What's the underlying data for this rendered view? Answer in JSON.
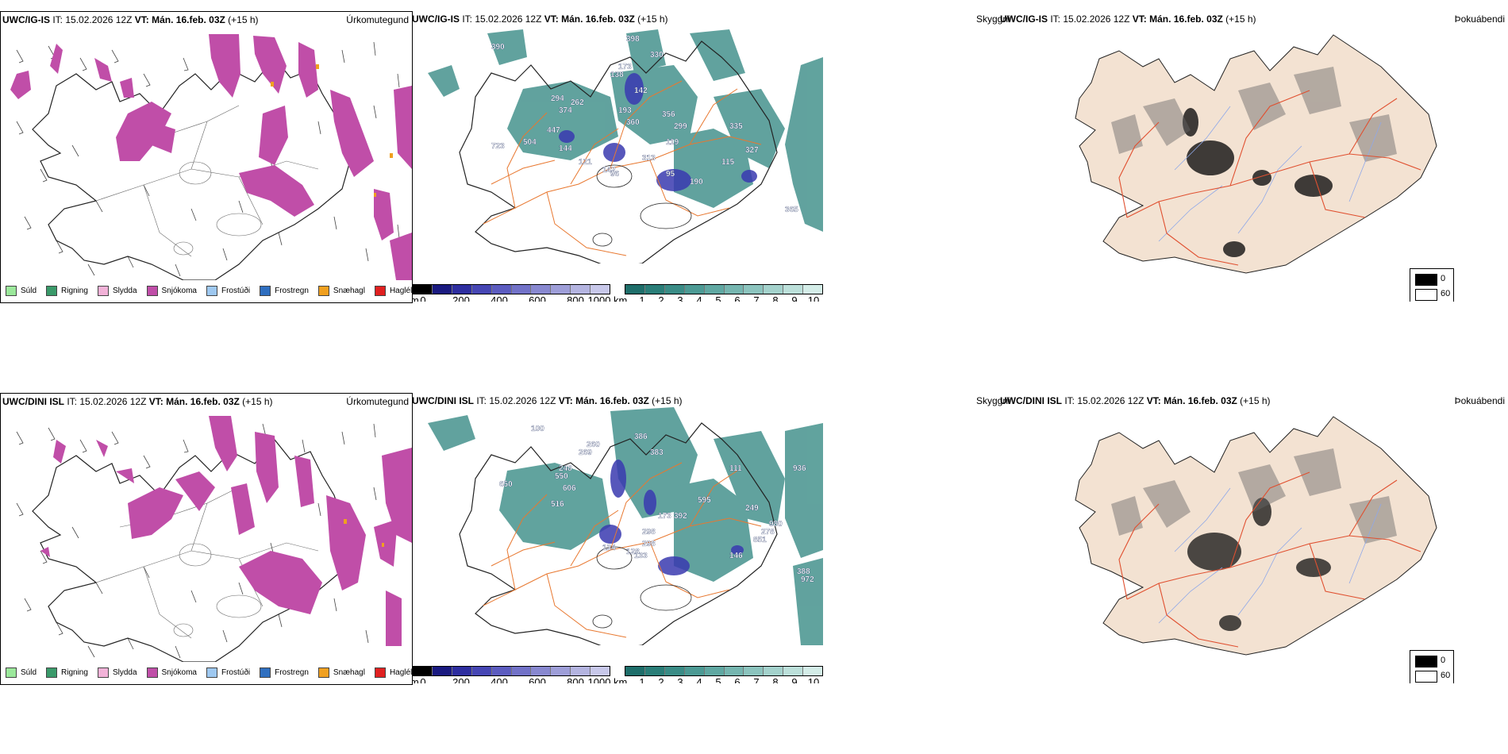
{
  "rows": [
    {
      "model": "UWC/IG-IS",
      "it_label": "IT:",
      "it_value": "15.02.2026 12Z",
      "vt_label": "VT:",
      "vt_value": "Mán. 16.feb. 03Z",
      "lead": "(+15 h)"
    },
    {
      "model": "UWC/DINI ISL",
      "it_label": "IT:",
      "it_value": "15.02.2026 12Z",
      "vt_label": "VT:",
      "vt_value": "Mán. 16.feb. 03Z",
      "lead": "(+15 h)"
    }
  ],
  "panel_names": {
    "precip_type": "Úrkomutegund",
    "cloud_base": "Skyggni",
    "fog": "Þokuábendi"
  },
  "precip_legend": [
    {
      "label": "Súld",
      "color": "#9be89b"
    },
    {
      "label": "Rigning",
      "color": "#3a9a6a"
    },
    {
      "label": "Slydda",
      "color": "#f2b2d8"
    },
    {
      "label": "Snjókoma",
      "color": "#c04ea8"
    },
    {
      "label": "Frostúði",
      "color": "#9ec8f0"
    },
    {
      "label": "Frostregn",
      "color": "#2f6fc0"
    },
    {
      "label": "Snæhagl",
      "color": "#f0a020"
    },
    {
      "label": "Haglél",
      "color": "#e02020"
    }
  ],
  "height_colorbar": {
    "unit": "m",
    "ticks": [
      "0",
      "200",
      "400",
      "600",
      "800",
      "1000"
    ],
    "colors": [
      "#000000",
      "#1a1a80",
      "#2e2ea0",
      "#4646b4",
      "#5c5cc0",
      "#7272c8",
      "#8888d0",
      "#9e9ed8",
      "#b4b4e0",
      "#c8c8ea"
    ]
  },
  "visibility_colorbar": {
    "unit": "km",
    "ticks": [
      "1",
      "2",
      "3",
      "4",
      "5",
      "6",
      "7",
      "8",
      "9",
      "10"
    ],
    "colors": [
      "#1e6e6a",
      "#2a7e78",
      "#3a8c86",
      "#4c9a94",
      "#60a8a2",
      "#76b6b0",
      "#8cc4be",
      "#a4d2cc",
      "#bce0da",
      "#d4ede8"
    ]
  },
  "fog_legend": {
    "high": "0",
    "low": "60"
  },
  "cloud_labels_top": [
    "390",
    "398",
    "330",
    "173",
    "138",
    "142",
    "294",
    "262",
    "374",
    "193",
    "360",
    "356",
    "299",
    "723",
    "504",
    "447",
    "144",
    "121",
    "96",
    "95",
    "119",
    "313",
    "142",
    "190",
    "327",
    "335",
    "115",
    "365"
  ],
  "cloud_labels_bottom": [
    "100",
    "650",
    "269",
    "260",
    "386",
    "383",
    "550",
    "606",
    "516",
    "248",
    "111",
    "392",
    "595",
    "298",
    "133",
    "124",
    "146",
    "128",
    "173",
    "249",
    "278",
    "980",
    "936",
    "298",
    "972",
    "388",
    "851"
  ],
  "colors": {
    "snow": "#c04ea8",
    "ice_pellets": "#f0a020",
    "teal": "#3a8c86",
    "roads": "#e87830",
    "fog_land": "#f3e2d2",
    "fog_roads": "#e05030",
    "rivers": "#8fa8e8"
  }
}
